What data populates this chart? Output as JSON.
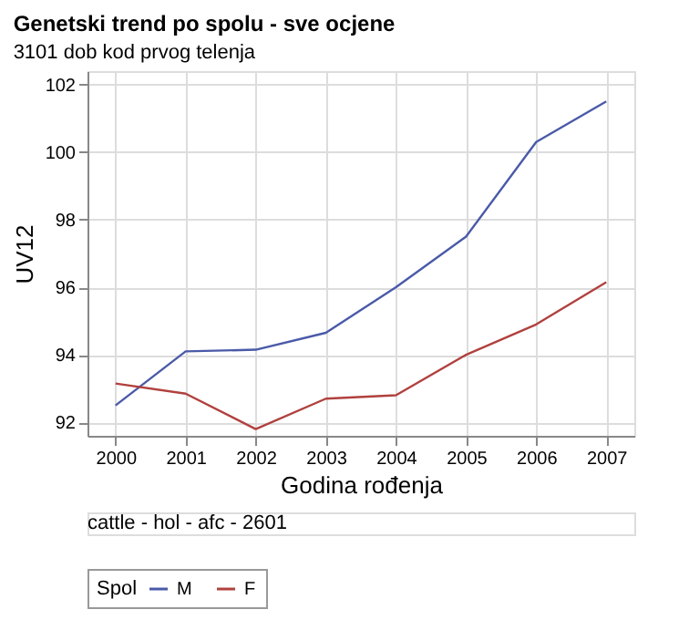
{
  "chart_data": {
    "type": "line",
    "title": "Genetski trend po spolu - sve ocjene",
    "subtitle": "3101 dob kod prvog telenja",
    "xlabel": "Godina rođenja",
    "ylabel": "UV12",
    "legend_title": "Spol",
    "categories": [
      "2000",
      "2001",
      "2002",
      "2003",
      "2004",
      "2005",
      "2006",
      "2007"
    ],
    "series": [
      {
        "name": "M",
        "color": "#4a5aa8",
        "values": [
          92.5,
          94.1,
          94.15,
          94.65,
          96.0,
          97.5,
          100.3,
          101.5
        ]
      },
      {
        "name": "F",
        "color": "#b0413e",
        "values": [
          93.15,
          92.85,
          91.8,
          92.7,
          92.8,
          94.0,
          94.9,
          96.15
        ]
      }
    ],
    "ylim": [
      91.6,
      102.4
    ],
    "yticks": [
      92,
      94,
      96,
      98,
      100,
      102
    ],
    "grid": true,
    "legend": "bottom",
    "marker": "none",
    "line_style": "solid",
    "annotations": [
      "cattle - hol - afc - 2601"
    ]
  }
}
